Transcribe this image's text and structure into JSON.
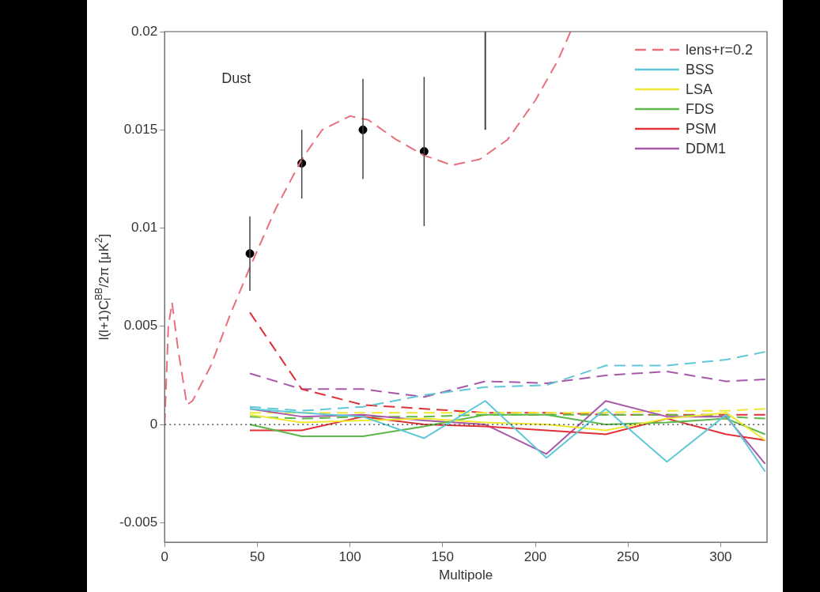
{
  "chart_data": {
    "type": "line",
    "xlabel": "Multipole",
    "ylabel": "l(l+1)C$_{l}$$^{BB}$/2π [μK$^{2}$]",
    "annotations": [
      "Dust"
    ],
    "xlim": [
      0,
      325
    ],
    "xticks": [
      0,
      50,
      100,
      150,
      200,
      250,
      300
    ],
    "ylim": [
      -0.006,
      0.02
    ],
    "yticks": [
      -0.005,
      0,
      0.005,
      0.01,
      0.015,
      0.02
    ],
    "grid": false,
    "legend": "top right",
    "ref_lines": [
      {
        "axis": "y",
        "value": 0,
        "color": "#333333",
        "line_style": "dotted"
      }
    ],
    "series": [
      {
        "name": "lens+r=0.2",
        "color": "#e8707c",
        "line_style": "dashed",
        "marker": "none",
        "x": [
          0,
          2,
          4,
          7,
          12,
          15,
          25,
          35,
          46,
          60,
          74,
          85,
          100,
          110,
          125,
          140,
          155,
          170,
          185,
          200,
          212,
          219
        ],
        "values": [
          0,
          0.005,
          0.0062,
          0.004,
          0.001,
          0.0012,
          0.003,
          0.0055,
          0.008,
          0.011,
          0.0135,
          0.015,
          0.0157,
          0.0155,
          0.0145,
          0.0137,
          0.0132,
          0.0135,
          0.0145,
          0.0165,
          0.0185,
          0.02
        ]
      },
      {
        "name": "BSS",
        "color": "#5fc8d8",
        "line_style": "solid",
        "marker": "none",
        "x": [
          46,
          74,
          107,
          140,
          173,
          206,
          238,
          271,
          303,
          324
        ],
        "values": [
          0.0008,
          0.0006,
          0.0004,
          -0.0007,
          0.0012,
          -0.0017,
          0.0008,
          -0.0019,
          0.0005,
          -0.0024
        ]
      },
      {
        "name": "LSA",
        "color": "#f0e830",
        "line_style": "solid",
        "marker": "none",
        "x": [
          46,
          74,
          107,
          140,
          173,
          206,
          238,
          271,
          303,
          324
        ],
        "values": [
          0.0005,
          0.0001,
          0.0002,
          0.0003,
          0.0001,
          0,
          -0.0003,
          0.0003,
          0.0006,
          -0.0008
        ]
      },
      {
        "name": "FDS",
        "color": "#5cb848",
        "line_style": "solid",
        "marker": "none",
        "x": [
          46,
          74,
          107,
          140,
          173,
          206,
          238,
          271,
          303,
          324
        ],
        "values": [
          0,
          -0.0006,
          -0.0006,
          -0.0001,
          0.0005,
          0.0005,
          0,
          0.0001,
          0.0003,
          -0.0005
        ]
      },
      {
        "name": "PSM",
        "color": "#e03038",
        "line_style": "solid",
        "marker": "none",
        "x": [
          46,
          74,
          107,
          140,
          173,
          206,
          238,
          271,
          303,
          324
        ],
        "values": [
          -0.0003,
          -0.0003,
          0.0004,
          0,
          -0.0001,
          -0.0003,
          -0.0005,
          0.0003,
          -0.0005,
          -0.0008
        ]
      },
      {
        "name": "DDM1",
        "color": "#a858a8",
        "line_style": "solid",
        "marker": "none",
        "x": [
          46,
          74,
          107,
          140,
          173,
          206,
          238,
          271,
          303,
          324
        ],
        "values": [
          0.0008,
          0.0004,
          0.0005,
          0.0002,
          0,
          -0.0015,
          0.0012,
          0.0004,
          0.0004,
          -0.002
        ]
      },
      {
        "color": "#5fc8d8",
        "line_style": "dashed",
        "marker": "none",
        "x": [
          46,
          74,
          107,
          140,
          173,
          206,
          238,
          271,
          303,
          324
        ],
        "values": [
          0.0009,
          0.0007,
          0.0009,
          0.0015,
          0.0019,
          0.002,
          0.003,
          0.003,
          0.0033,
          0.0037
        ]
      },
      {
        "color": "#f0e830",
        "line_style": "dashed",
        "marker": "none",
        "x": [
          46,
          74,
          107,
          140,
          173,
          206,
          238,
          271,
          303,
          324
        ],
        "values": [
          0.0006,
          0.0006,
          0.0006,
          0.0006,
          0.0006,
          0.0006,
          0.0006,
          0.0007,
          0.0007,
          0.0008
        ]
      },
      {
        "color": "#5cb848",
        "line_style": "dashed",
        "marker": "none",
        "x": [
          46,
          74,
          107,
          140,
          173,
          206,
          238,
          271,
          303,
          324
        ],
        "values": [
          0.0004,
          0.0003,
          0.0004,
          0.0004,
          0.0005,
          0.0005,
          0.0005,
          0.0005,
          0.0004,
          0.0003
        ]
      },
      {
        "color": "#e03038",
        "line_style": "dashed",
        "marker": "none",
        "x": [
          46,
          74,
          107,
          140,
          173,
          206,
          238,
          271,
          303,
          324
        ],
        "values": [
          0.0057,
          0.0018,
          0.001,
          0.0008,
          0.0006,
          0.0006,
          0.0005,
          0.0005,
          0.0005,
          0.0005
        ]
      },
      {
        "color": "#a858a8",
        "line_style": "dashed",
        "marker": "none",
        "x": [
          46,
          74,
          107,
          140,
          173,
          206,
          238,
          271,
          303,
          324
        ],
        "values": [
          0.0026,
          0.0018,
          0.0018,
          0.0014,
          0.0022,
          0.0021,
          0.0025,
          0.0027,
          0.0022,
          0.0023
        ]
      },
      {
        "type": "scatter",
        "color": "#000000",
        "marker": "circle",
        "x": [
          46,
          74,
          107,
          140
        ],
        "values": [
          0.0087,
          0.0133,
          0.015,
          0.0139
        ],
        "errors": [
          [
            0.0068,
            0.0106
          ],
          [
            0.0115,
            0.015
          ],
          [
            0.0125,
            0.0176
          ],
          [
            0.0101,
            0.0177
          ]
        ]
      },
      {
        "color": "#444444",
        "line_style": "solid",
        "marker": "none",
        "x": [
          173,
          173
        ],
        "values": [
          0.015,
          0.02
        ]
      }
    ]
  }
}
